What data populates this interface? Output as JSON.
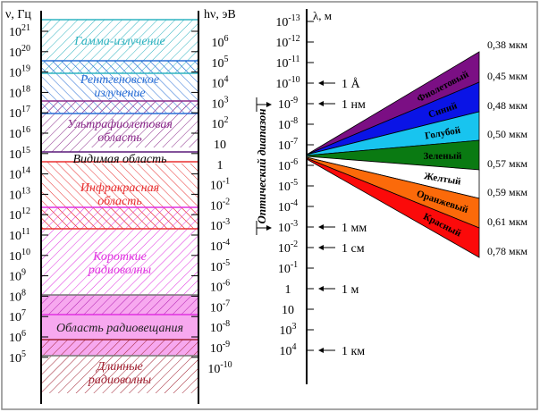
{
  "left": {
    "nu_axis_label": "ν, Гц",
    "energy_axis_label": "hν, эВ",
    "nu_ticks": [
      [
        "10",
        "21"
      ],
      [
        "10",
        "20"
      ],
      [
        "10",
        "19"
      ],
      [
        "10",
        "18"
      ],
      [
        "10",
        "17"
      ],
      [
        "10",
        "16"
      ],
      [
        "10",
        "15"
      ],
      [
        "10",
        "14"
      ],
      [
        "10",
        "13"
      ],
      [
        "10",
        "12"
      ],
      [
        "10",
        "11"
      ],
      [
        "10",
        "10"
      ],
      [
        "10",
        "9"
      ],
      [
        "10",
        "8"
      ],
      [
        "10",
        "7"
      ],
      [
        "10",
        "6"
      ],
      [
        "10",
        "5"
      ]
    ],
    "energy_ticks": [
      [
        "10",
        "6"
      ],
      [
        "10",
        "5"
      ],
      [
        "10",
        "4"
      ],
      [
        "10",
        "3"
      ],
      [
        "10",
        "2"
      ],
      [
        "10",
        ""
      ],
      [
        "1",
        ""
      ],
      [
        "10",
        "-1"
      ],
      [
        "10",
        "-2"
      ],
      [
        "10",
        "-3"
      ],
      [
        "10",
        "-4"
      ],
      [
        "10",
        "-5"
      ],
      [
        "10",
        "-6"
      ],
      [
        "10",
        "-7"
      ],
      [
        "10",
        "-8"
      ],
      [
        "10",
        "-9"
      ],
      [
        "10",
        "-10"
      ]
    ],
    "bands": [
      {
        "label": [
          "Гамма-излучение"
        ],
        "color": "#2fb3c0"
      },
      {
        "label": [
          "Рентгеновское",
          "излучение"
        ],
        "color": "#2a6fd6"
      },
      {
        "label": [
          "Ультрафиолетовая",
          "область"
        ],
        "color": "#8a2a8a"
      },
      {
        "label": [
          "Видимая область"
        ],
        "color": "#000000"
      },
      {
        "label": [
          "Инфракрасная",
          "область"
        ],
        "color": "#e83030"
      },
      {
        "label": [
          "Короткие",
          "радиоволны"
        ],
        "color": "#e030e0"
      },
      {
        "label": [
          "Область радиовещания"
        ],
        "color": "#222222"
      },
      {
        "label": [
          "Длинные",
          "радиоволны"
        ],
        "color": "#a02030"
      }
    ]
  },
  "right": {
    "lambda_axis_label": "λ, м",
    "lambda_ticks": [
      [
        "10",
        "-13"
      ],
      [
        "10",
        "-12"
      ],
      [
        "10",
        "-11"
      ],
      [
        "10",
        "-10"
      ],
      [
        "10",
        "-9"
      ],
      [
        "10",
        "-8"
      ],
      [
        "10",
        "-7"
      ],
      [
        "10",
        "-6"
      ],
      [
        "10",
        "-5"
      ],
      [
        "10",
        "-4"
      ],
      [
        "10",
        "-3"
      ],
      [
        "10",
        "-2"
      ],
      [
        "10",
        "-1"
      ],
      [
        "1",
        ""
      ],
      [
        "10",
        ""
      ],
      [
        "10",
        "3"
      ],
      [
        "10",
        "4"
      ]
    ],
    "markers": [
      {
        "label": "1 Å",
        "tick": 3
      },
      {
        "label": "1 нм",
        "tick": 4
      },
      {
        "label": "1 мм",
        "tick": 10
      },
      {
        "label": "1 см",
        "tick": 11
      },
      {
        "label": "1 м",
        "tick": 13
      },
      {
        "label": "1 км",
        "tick": 16
      }
    ],
    "optical_range_label": "Оптический диапазон",
    "colors": [
      {
        "name": "Фиолетовый",
        "fill": "#7b0f84",
        "text": "#000000"
      },
      {
        "name": "Синий",
        "fill": "#0a14e6",
        "text": "#000000"
      },
      {
        "name": "Голубой",
        "fill": "#18c4ef",
        "text": "#000000"
      },
      {
        "name": "Зеленый",
        "fill": "#0a7a12",
        "text": "#000000"
      },
      {
        "name": "Желтый",
        "fill": "#ffffff",
        "text": "#000000"
      },
      {
        "name": "Оранжевый",
        "fill": "#fb6a0a",
        "text": "#000000"
      },
      {
        "name": "Красный",
        "fill": "#fb0a0a",
        "text": "#000000"
      }
    ],
    "wavelengths": [
      "0,38 мкм",
      "0,45 мкм",
      "0,48 мкм",
      "0,50 мкм",
      "0,57 мкм",
      "0,59 мкм",
      "0,61 мкм",
      "0,78 мкм"
    ]
  }
}
